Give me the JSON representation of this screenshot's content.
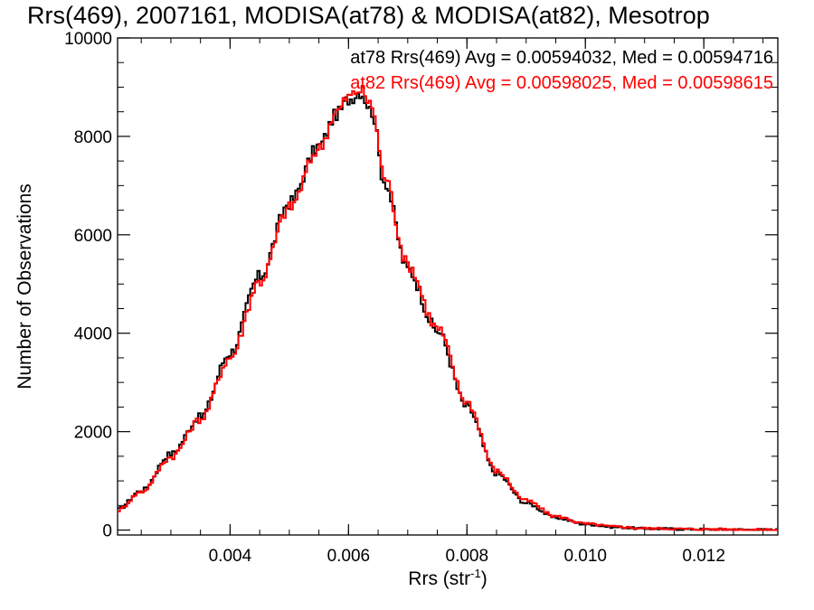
{
  "chart_data": {
    "type": "histogram",
    "title": "Rrs(469), 2007161, MODISA(at78) & MODISA(at82), Mesotrop",
    "xlabel": "Rrs (str",
    "xlabel_sup": "-1",
    "xlabel_end": ")",
    "ylabel": "Number of Observations",
    "xlim": [
      0.0021,
      0.01325
    ],
    "ylim": [
      -100,
      10000
    ],
    "xticks": [
      0.004,
      0.006,
      0.008,
      0.01,
      0.012
    ],
    "xtick_labels": [
      "0.004",
      "0.006",
      "0.008",
      "0.010",
      "0.012"
    ],
    "yticks": [
      0,
      2000,
      4000,
      6000,
      8000,
      10000
    ],
    "ytick_labels": [
      "0",
      "2000",
      "4000",
      "6000",
      "8000",
      "10000"
    ],
    "grid": false,
    "legend_position": "top-right",
    "series": [
      {
        "name": "at78",
        "label": "at78 Rrs(469) Avg = 0.00594032, Med = 0.00594716",
        "color": "#000000",
        "x": [
          0.0021,
          0.0025,
          0.003,
          0.0035,
          0.004,
          0.0045,
          0.005,
          0.0055,
          0.0058,
          0.006,
          0.0062,
          0.0064,
          0.0066,
          0.007,
          0.0075,
          0.008,
          0.0085,
          0.009,
          0.0095,
          0.01,
          0.0105,
          0.011,
          0.012,
          0.01325
        ],
        "y": [
          420,
          800,
          1550,
          2300,
          3600,
          5150,
          6650,
          7800,
          8450,
          8750,
          8900,
          8500,
          7100,
          5300,
          4050,
          2500,
          1150,
          550,
          250,
          120,
          60,
          30,
          15,
          5
        ]
      },
      {
        "name": "at82",
        "label": "at82 Rrs(469) Avg = 0.00598025, Med = 0.00598615",
        "color": "#ff0000",
        "x": [
          0.0021,
          0.0025,
          0.003,
          0.0035,
          0.004,
          0.0045,
          0.005,
          0.0055,
          0.0058,
          0.006,
          0.0062,
          0.0064,
          0.0066,
          0.007,
          0.0075,
          0.008,
          0.0085,
          0.009,
          0.0095,
          0.01,
          0.0105,
          0.011,
          0.012,
          0.01325
        ],
        "y": [
          400,
          780,
          1480,
          2250,
          3500,
          5050,
          6550,
          7750,
          8500,
          8800,
          8950,
          8600,
          7200,
          5400,
          4100,
          2600,
          1200,
          600,
          280,
          130,
          70,
          35,
          18,
          6
        ]
      }
    ]
  }
}
